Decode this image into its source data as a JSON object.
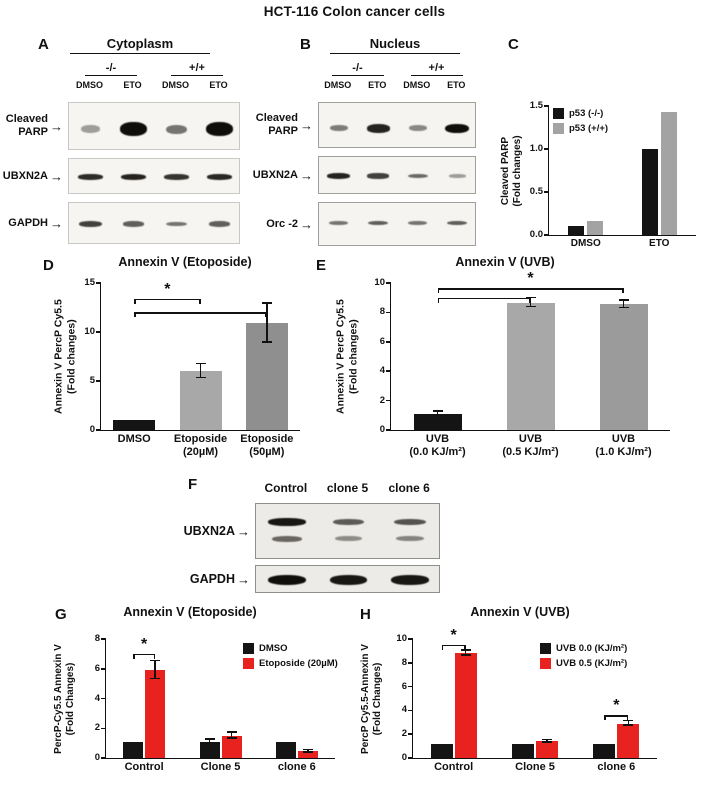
{
  "figure": {
    "title": "HCT-116 Colon cancer cells"
  },
  "blots": {
    "A": {
      "letter": "A",
      "header": "Cytoplasm",
      "groups": [
        "-/-",
        "+/+"
      ],
      "lanes": [
        "DMSO",
        "ETO",
        "DMSO",
        "ETO"
      ],
      "rows": [
        {
          "label_lines": [
            "Cleaved",
            "PARP"
          ],
          "bands": [
            [
              0.3,
              1,
              0.5,
              1
            ]
          ],
          "band_y": [
            0.55
          ],
          "band_h": 14
        },
        {
          "label_lines": [
            "UBXN2A"
          ],
          "bands": [
            [
              0.85,
              0.9,
              0.82,
              0.88
            ]
          ],
          "band_y": [
            0.5
          ],
          "band_h": 6
        },
        {
          "label_lines": [
            "GAPDH"
          ],
          "bands": [
            [
              0.75,
              0.6,
              0.5,
              0.6
            ]
          ],
          "band_y": [
            0.5
          ],
          "band_h": 7
        }
      ]
    },
    "B": {
      "letter": "B",
      "header": "Nucleus",
      "groups": [
        "-/-",
        "+/+"
      ],
      "lanes": [
        "DMSO",
        "ETO",
        "DMSO",
        "ETO"
      ],
      "rows": [
        {
          "label_lines": [
            "Cleaved",
            "PARP"
          ],
          "bands": [
            [
              0.45,
              0.9,
              0.4,
              1
            ]
          ],
          "band_y": [
            0.55
          ],
          "band_h": 9
        },
        {
          "label_lines": [
            "UBXN2A"
          ],
          "bands": [
            [
              0.9,
              0.75,
              0.55,
              0.3
            ]
          ],
          "band_y": [
            0.5
          ],
          "band_h": 6
        },
        {
          "label_lines": [
            "Orc -2"
          ],
          "bands": [
            [
              0.5,
              0.6,
              0.5,
              0.6
            ]
          ],
          "band_y": [
            0.45
          ],
          "band_h": 6
        }
      ]
    },
    "F": {
      "letter": "F",
      "lanes": [
        "Control",
        "clone 5",
        "clone 6"
      ],
      "rows": [
        {
          "label_lines": [
            "UBXN2A"
          ],
          "bands": [
            [
              0.95,
              0.6,
              0.65
            ],
            [
              0.55,
              0.35,
              0.4
            ]
          ],
          "band_y": [
            0.32,
            0.62
          ],
          "band_h": 8
        },
        {
          "label_lines": [
            "GAPDH"
          ],
          "bands": [
            [
              1,
              0.95,
              0.95
            ]
          ],
          "band_y": [
            0.5
          ],
          "band_h": 10
        }
      ]
    }
  },
  "chart_data": {
    "C": {
      "letter": "C",
      "type": "bar",
      "ylabel": "Cleaved PARP\n(Fold changes)",
      "ylim": [
        0,
        1.5
      ],
      "ytick_vals": [
        0,
        0.5,
        1,
        1.5
      ],
      "yticks": [
        "0.0",
        "0.5",
        "1.0",
        "1.5"
      ],
      "categories": [
        [
          "DMSO"
        ],
        [
          "ETO"
        ]
      ],
      "series": [
        {
          "name": "p53 (-/-)",
          "color": "#141414",
          "values": [
            0.1,
            1.0
          ],
          "errors": [
            0,
            0
          ]
        },
        {
          "name": "p53 (+/+)",
          "color": "#a3a3a3",
          "values": [
            0.16,
            1.43
          ],
          "errors": [
            0,
            0
          ]
        }
      ],
      "legend": true
    },
    "D": {
      "letter": "D",
      "type": "bar",
      "title": "Annexin V (Etoposide)",
      "ylabel": "Annexin V PercP Cy5.5\n(Fold changes)",
      "ylim": [
        0,
        15
      ],
      "ytick_vals": [
        0,
        5,
        10,
        15
      ],
      "yticks": [
        "0",
        "5",
        "10",
        "15"
      ],
      "categories": [
        [
          "DMSO"
        ],
        [
          "Etoposide",
          "(20µM)"
        ],
        [
          "Etoposide",
          "(50µM)"
        ]
      ],
      "values": [
        1.0,
        6.0,
        10.9
      ],
      "errors": [
        0,
        0.7,
        2.0
      ],
      "colors": [
        "#141414",
        "#a8a8a8",
        "#8f8f8f"
      ],
      "significance": [
        {
          "a": 0,
          "b": 2,
          "y": 12.0,
          "label": ""
        },
        {
          "a": 0,
          "b": 1,
          "y": 13.4,
          "label": "*"
        }
      ]
    },
    "E": {
      "letter": "E",
      "type": "bar",
      "title": "Annexin V (UVB)",
      "ylabel": "Annexin V PercP Cy5.5\n(Fold changes)",
      "ylim": [
        0,
        10
      ],
      "ytick_vals": [
        0,
        2,
        4,
        6,
        8,
        10
      ],
      "yticks": [
        "0",
        "2",
        "4",
        "6",
        "8",
        "10"
      ],
      "categories": [
        [
          "UVB",
          "(0.0 KJ/m²)"
        ],
        [
          "UVB",
          "(0.5 KJ/m²)"
        ],
        [
          "UVB",
          "(1.0 KJ/m²)"
        ]
      ],
      "values": [
        1.1,
        8.65,
        8.55
      ],
      "errors": [
        0.15,
        0.3,
        0.25
      ],
      "colors": [
        "#141414",
        "#a8a8a8",
        "#9b9b9b"
      ],
      "significance": [
        {
          "a": 0,
          "b": 1,
          "y": 9.0,
          "label": ""
        },
        {
          "a": 0,
          "b": 2,
          "y": 9.65,
          "label": "*"
        }
      ]
    },
    "G": {
      "letter": "G",
      "type": "grouped-bar",
      "title": "Annexin V (Etoposide)",
      "ylabel": "PercP-Cy5.5 Annexin V\n(Fold Changes)",
      "ylim": [
        0,
        8
      ],
      "ytick_vals": [
        0,
        2,
        4,
        6,
        8
      ],
      "yticks": [
        "0",
        "2",
        "4",
        "6",
        "8"
      ],
      "categories": [
        [
          "Control"
        ],
        [
          "Clone 5"
        ],
        [
          "clone 6"
        ]
      ],
      "series": [
        {
          "name": "DMSO",
          "color": "#141414",
          "values": [
            1.1,
            1.1,
            1.1
          ],
          "errors": [
            0,
            0.12,
            0
          ]
        },
        {
          "name": "Etoposide (20µM)",
          "color": "#e8231f",
          "values": [
            5.9,
            1.5,
            0.45
          ],
          "errors": [
            0.6,
            0.2,
            0.08
          ]
        }
      ],
      "significance": [
        {
          "cat": 0,
          "y": 7.0,
          "label": "*"
        }
      ],
      "legend": true
    },
    "H": {
      "letter": "H",
      "type": "grouped-bar",
      "title": "Annexin V (UVB)",
      "ylabel": "PercP Cy5.5-Annexin V\n(Fold Changes)",
      "ylim": [
        0,
        10
      ],
      "ytick_vals": [
        0,
        2,
        4,
        6,
        8,
        10
      ],
      "yticks": [
        "0",
        "2",
        "4",
        "6",
        "8",
        "10"
      ],
      "categories": [
        [
          "Control"
        ],
        [
          "Clone 5"
        ],
        [
          "clone 6"
        ]
      ],
      "series": [
        {
          "name": "UVB 0.0 (KJ/m²)",
          "color": "#141414",
          "values": [
            1.2,
            1.2,
            1.2
          ],
          "errors": [
            0,
            0,
            0
          ]
        },
        {
          "name": "UVB 0.5 (KJ/m²)",
          "color": "#e8231f",
          "values": [
            8.8,
            1.4,
            2.9
          ],
          "errors": [
            0.2,
            0.1,
            0.2
          ]
        }
      ],
      "significance": [
        {
          "cat": 0,
          "y": 9.5,
          "label": "*"
        },
        {
          "cat": 2,
          "y": 3.6,
          "label": "*"
        }
      ],
      "legend": true
    }
  }
}
